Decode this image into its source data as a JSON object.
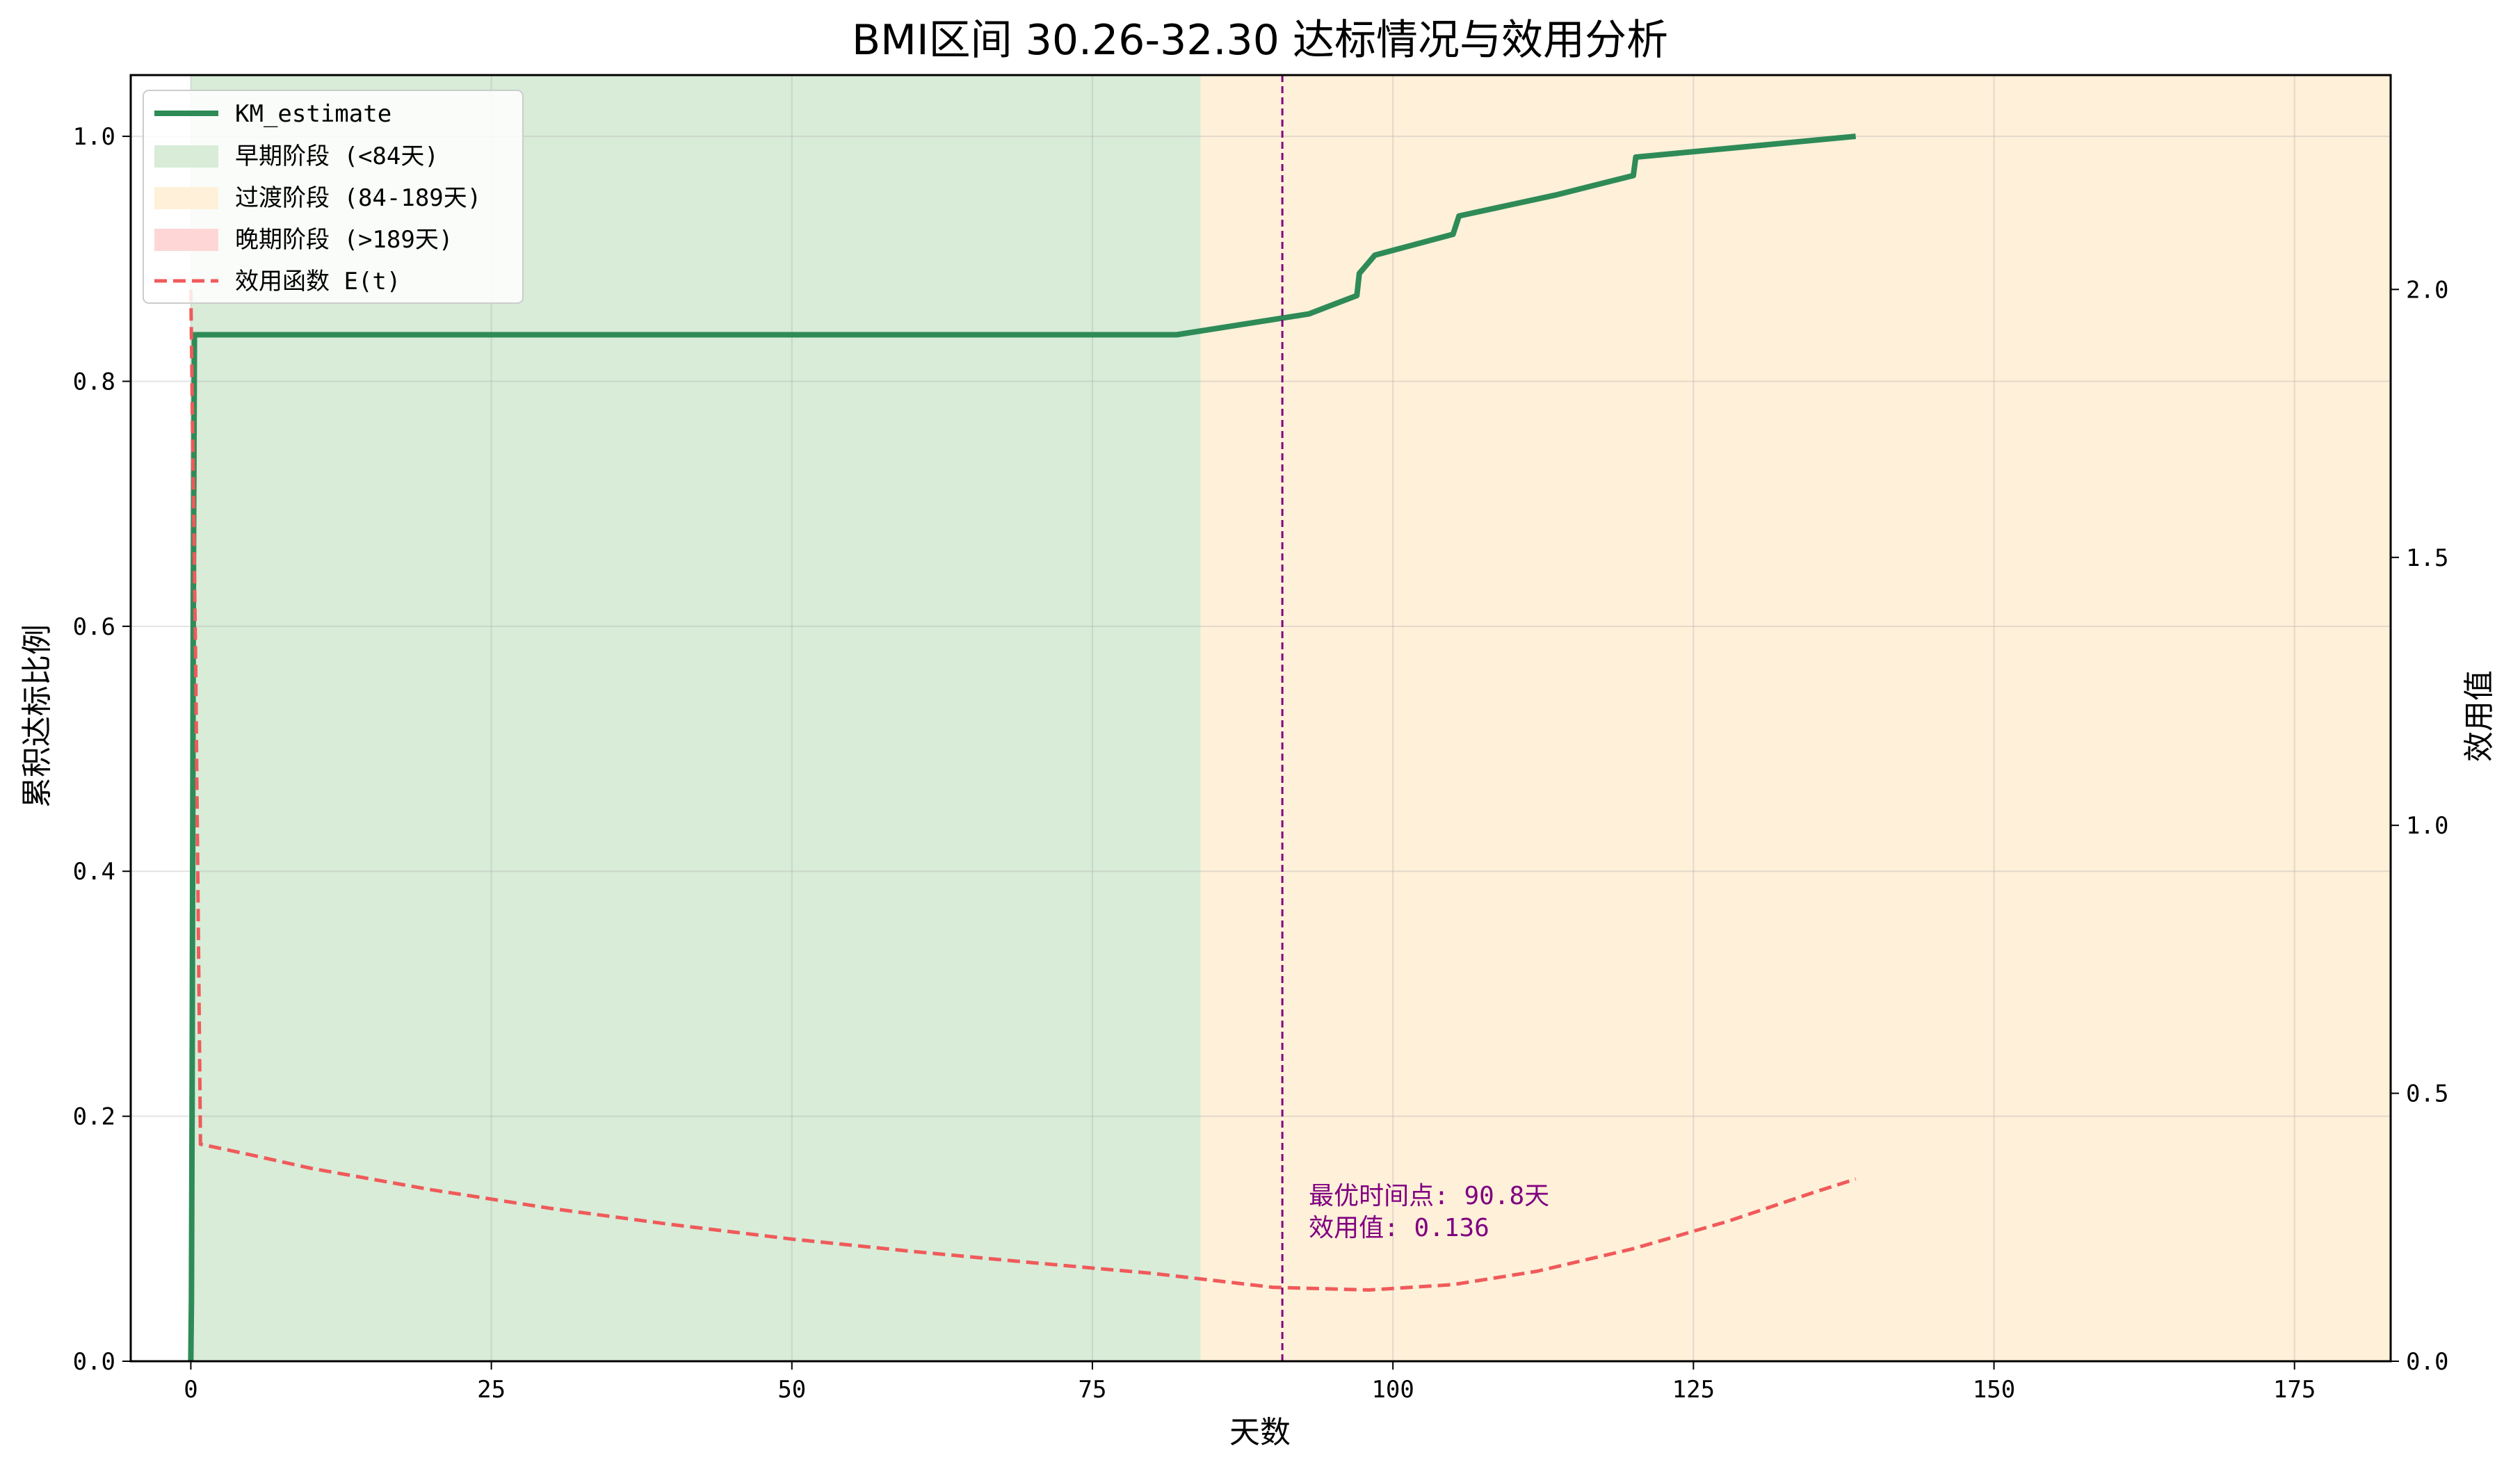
{
  "chart_data": {
    "type": "line",
    "title": "BMI区间 30.26-32.30 达标情况与效用分析",
    "xlabel": "天数",
    "ylabel": "累积达标比例",
    "y2label": "效用值",
    "xlim": [
      -5,
      183
    ],
    "ylim": [
      0,
      1.05
    ],
    "y2lim": [
      0,
      2.4
    ],
    "x_ticks": [
      0,
      25,
      50,
      75,
      100,
      125,
      150,
      175
    ],
    "y_ticks": [
      0.0,
      0.2,
      0.4,
      0.6,
      0.8,
      1.0
    ],
    "y_tick_labels": [
      "0.0",
      "0.2",
      "0.4",
      "0.6",
      "0.8",
      "1.0"
    ],
    "y2_ticks": [
      0.0,
      0.5,
      1.0,
      1.5,
      2.0
    ],
    "y2_tick_labels": [
      "0.0",
      "0.5",
      "1.0",
      "1.5",
      "2.0"
    ],
    "grid": true,
    "legend_position": "top-left",
    "phases": [
      {
        "name": "早期阶段 (<84天)",
        "start": 0,
        "end": 84,
        "color": "#d8ecd8"
      },
      {
        "name": "过渡阶段 (84-189天)",
        "start": 84,
        "end": 183,
        "color": "#fff0d9"
      },
      {
        "name": "晚期阶段 (>189天)",
        "start": 189,
        "end": 189,
        "color": "#ffd6d6"
      }
    ],
    "series": [
      {
        "name": "KM_estimate",
        "axis": "left",
        "color": "#2e8b57",
        "style": "solid",
        "x": [
          0,
          0.05,
          0.1,
          0.2,
          0.3,
          82,
          93,
          97,
          97.2,
          98.5,
          105,
          105.5,
          113.5,
          120,
          120.2,
          138.5
        ],
        "y": [
          0,
          0.05,
          0.2,
          0.6,
          0.838,
          0.838,
          0.855,
          0.87,
          0.888,
          0.903,
          0.92,
          0.935,
          0.952,
          0.968,
          0.983,
          1.0
        ]
      },
      {
        "name": "效用函数 E(t)",
        "axis": "right",
        "color": "#f05a5a",
        "style": "dashed",
        "x": [
          0,
          0.4,
          0.8,
          5,
          10,
          20,
          30,
          40,
          50,
          60,
          70,
          80,
          90,
          98,
          105,
          112,
          120,
          128,
          135,
          138.5
        ],
        "y": [
          2.0,
          1.3,
          0.405,
          0.385,
          0.36,
          0.32,
          0.285,
          0.255,
          0.228,
          0.205,
          0.184,
          0.164,
          0.138,
          0.133,
          0.143,
          0.168,
          0.21,
          0.262,
          0.315,
          0.34
        ]
      }
    ],
    "optimal_line": {
      "x": 90.8,
      "color": "#800080"
    },
    "annotations": [
      "最优时间点: 90.8天",
      "效用值: 0.136"
    ]
  }
}
